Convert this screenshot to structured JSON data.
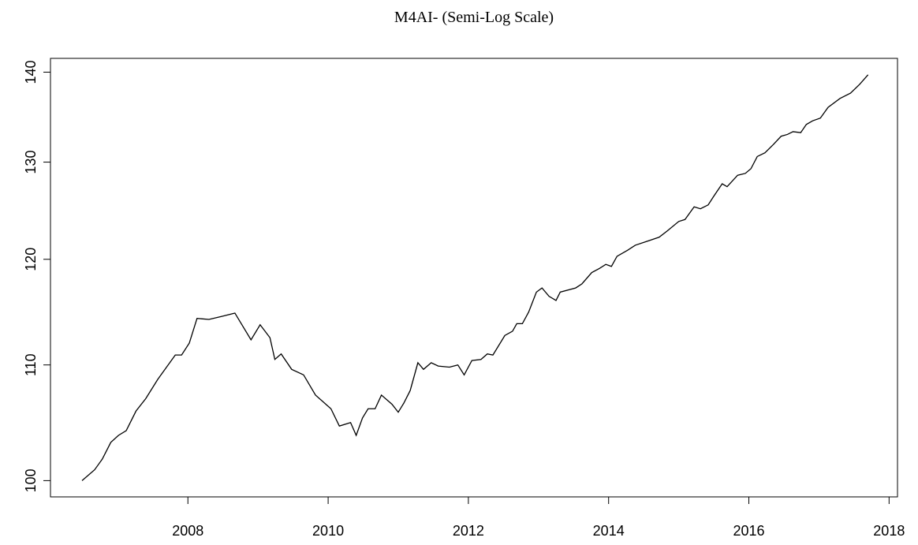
{
  "chart_data": {
    "type": "line",
    "title": "M4AI- (Semi-Log Scale)",
    "ylog": true,
    "color": "#000000",
    "x": [
      2006.49,
      2006.67,
      2006.78,
      2006.9,
      2007.01,
      2007.12,
      2007.26,
      2007.4,
      2007.57,
      2007.82,
      2007.91,
      2008.02,
      2008.13,
      2008.3,
      2008.49,
      2008.67,
      2008.9,
      2009.03,
      2009.17,
      2009.24,
      2009.33,
      2009.48,
      2009.65,
      2009.82,
      2010.04,
      2010.16,
      2010.32,
      2010.4,
      2010.49,
      2010.57,
      2010.67,
      2010.76,
      2010.91,
      2011.0,
      2011.08,
      2011.17,
      2011.28,
      2011.36,
      2011.47,
      2011.57,
      2011.73,
      2011.85,
      2011.94,
      2012.05,
      2012.18,
      2012.27,
      2012.35,
      2012.52,
      2012.63,
      2012.69,
      2012.77,
      2012.86,
      2012.97,
      2013.05,
      2013.15,
      2013.25,
      2013.31,
      2013.53,
      2013.62,
      2013.76,
      2013.87,
      2013.96,
      2014.04,
      2014.12,
      2014.27,
      2014.38,
      2014.55,
      2014.72,
      2014.83,
      2015.0,
      2015.09,
      2015.17,
      2015.22,
      2015.31,
      2015.42,
      2015.5,
      2015.62,
      2015.69,
      2015.84,
      2015.95,
      2016.03,
      2016.12,
      2016.23,
      2016.35,
      2016.46,
      2016.55,
      2016.63,
      2016.74,
      2016.82,
      2016.91,
      2017.02,
      2017.13,
      2017.3,
      2017.45,
      2017.58,
      2017.7
    ],
    "values": [
      100.0,
      100.9,
      101.8,
      103.2,
      103.8,
      104.2,
      105.9,
      107.0,
      108.7,
      110.9,
      110.9,
      112.0,
      114.3,
      114.2,
      114.5,
      114.8,
      112.3,
      113.7,
      112.5,
      110.5,
      111.0,
      109.6,
      109.1,
      107.3,
      106.1,
      104.6,
      104.9,
      103.8,
      105.3,
      106.1,
      106.1,
      107.3,
      106.5,
      105.8,
      106.6,
      107.7,
      110.2,
      109.6,
      110.2,
      109.9,
      109.8,
      110.0,
      109.1,
      110.4,
      110.5,
      111.0,
      110.9,
      112.7,
      113.1,
      113.8,
      113.8,
      114.9,
      116.8,
      117.2,
      116.4,
      116.0,
      116.8,
      117.2,
      117.6,
      118.7,
      119.1,
      119.5,
      119.3,
      120.3,
      120.9,
      121.4,
      121.8,
      122.2,
      122.8,
      123.8,
      124.0,
      124.8,
      125.3,
      125.1,
      125.5,
      126.4,
      127.7,
      127.4,
      128.6,
      128.8,
      129.3,
      130.6,
      131.0,
      131.9,
      132.8,
      133.0,
      133.3,
      133.2,
      134.1,
      134.5,
      134.8,
      136.0,
      137.0,
      137.6,
      138.6,
      139.7
    ],
    "xlim": [
      2006.04,
      2018.12
    ],
    "xticks": [
      2008,
      2010,
      2012,
      2014,
      2016,
      2018
    ],
    "ylim": [
      98.67,
      141.6
    ],
    "yticks": [
      100,
      110,
      120,
      130,
      140
    ]
  }
}
